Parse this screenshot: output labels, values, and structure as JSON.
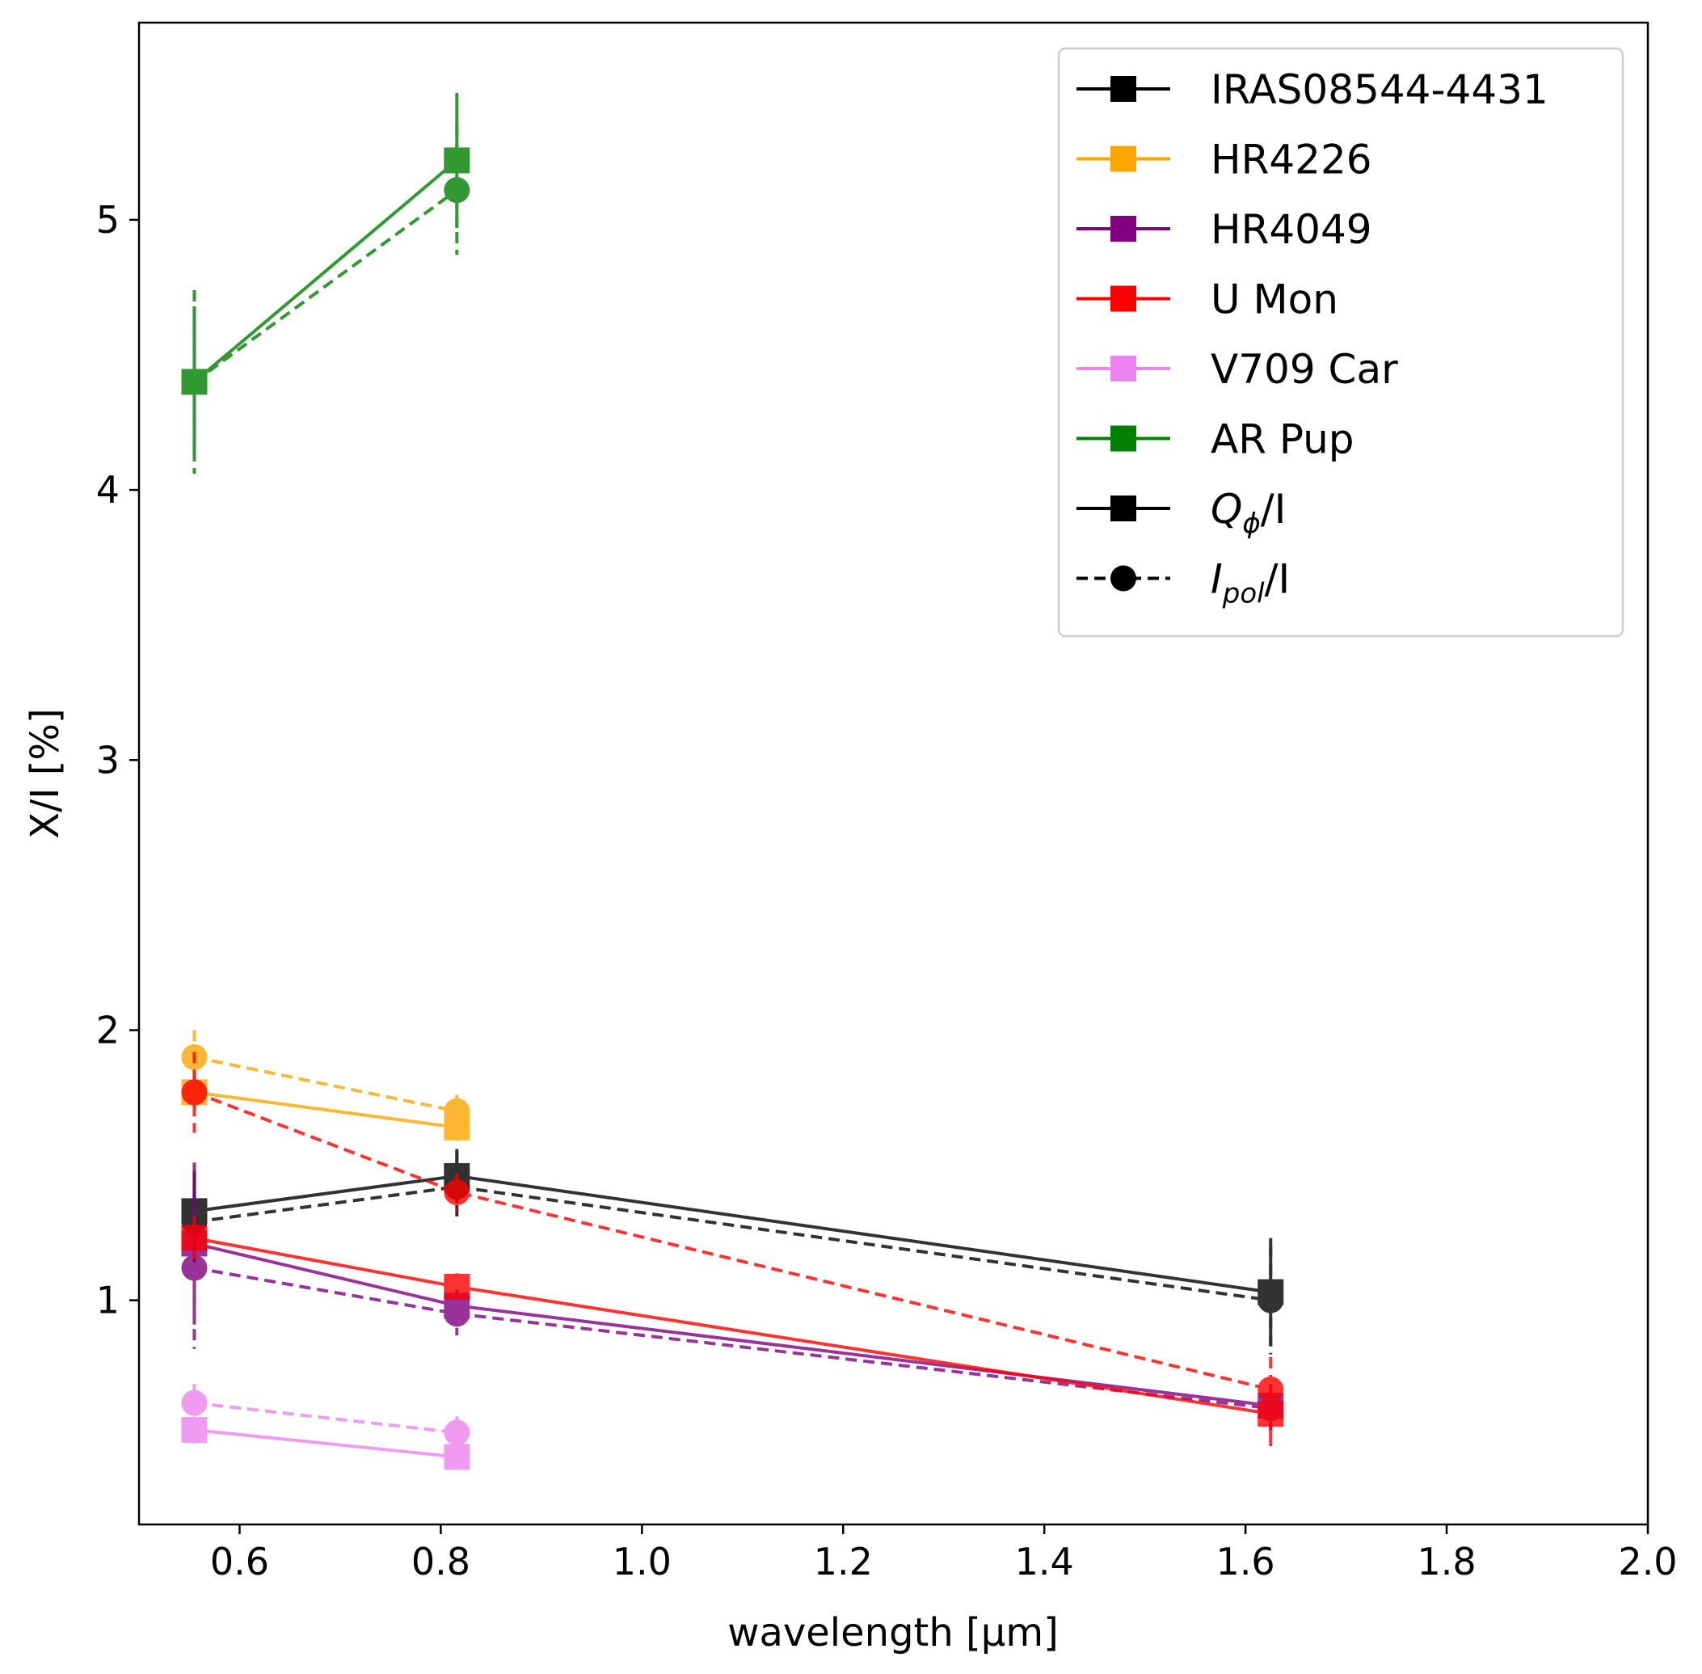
{
  "chart_data": {
    "type": "line",
    "title": "",
    "xlabel": "wavelength [μm]",
    "ylabel": "X/I [%]",
    "xlim": [
      0.5,
      2.0
    ],
    "ylim": [
      0.17,
      5.73
    ],
    "xticks": [
      "0.6",
      "0.8",
      "1.0",
      "1.2",
      "1.4",
      "1.6",
      "1.8",
      "2.0"
    ],
    "yticks": [
      "1",
      "2",
      "3",
      "4",
      "5"
    ],
    "grid": false,
    "legend_position": "top-right",
    "legend": {
      "objects": [
        "IRAS08544-4431",
        "HR4226",
        "HR4049",
        "U Mon",
        "V709 Car",
        "AR Pup"
      ],
      "styles": [
        {
          "name": "Qφ/I",
          "main": "Q",
          "sub": "ϕ",
          "suffix": "/I",
          "linestyle": "solid",
          "marker": "square"
        },
        {
          "name": "Ipol/I",
          "main": "I",
          "sub": "pol",
          "suffix": "/I",
          "linestyle": "dashed",
          "marker": "circle"
        }
      ]
    },
    "series": [
      {
        "name": "IRAS08544-4431",
        "color": "#000000",
        "q_phi": {
          "x": [
            0.555,
            0.816,
            1.625
          ],
          "y": [
            1.33,
            1.46,
            1.03
          ],
          "err": [
            0.15,
            0.1,
            0.2
          ]
        },
        "i_pol": {
          "x": [
            0.555,
            0.816,
            1.625
          ],
          "y": [
            1.29,
            1.42,
            1.0
          ],
          "err": [
            0.15,
            0.13,
            0.2
          ]
        }
      },
      {
        "name": "HR4226",
        "color": "#ffa500",
        "q_phi": {
          "x": [
            0.555,
            0.816
          ],
          "y": [
            1.77,
            1.64
          ],
          "err": [
            0.06,
            0.05
          ]
        },
        "i_pol": {
          "x": [
            0.555,
            0.816
          ],
          "y": [
            1.9,
            1.7
          ],
          "err": [
            0.1,
            0.06
          ]
        }
      },
      {
        "name": "HR4049",
        "color": "#800080",
        "q_phi": {
          "x": [
            0.555,
            0.816,
            1.625
          ],
          "y": [
            1.21,
            0.98,
            0.61
          ],
          "err": [
            0.3,
            0.06,
            0.08
          ]
        },
        "i_pol": {
          "x": [
            0.555,
            0.816,
            1.625
          ],
          "y": [
            1.12,
            0.95,
            0.6
          ],
          "err": [
            0.3,
            0.08,
            0.08
          ]
        }
      },
      {
        "name": "U Mon",
        "color": "#ff0000",
        "q_phi": {
          "x": [
            0.555,
            0.816,
            1.625
          ],
          "y": [
            1.23,
            1.05,
            0.58
          ],
          "err": [
            0.08,
            0.05,
            0.12
          ]
        },
        "i_pol": {
          "x": [
            0.555,
            0.816,
            1.625
          ],
          "y": [
            1.77,
            1.4,
            0.67
          ],
          "err": [
            0.15,
            0.07,
            0.12
          ]
        }
      },
      {
        "name": "V709 Car",
        "color": "#ee82ee",
        "q_phi": {
          "x": [
            0.555,
            0.816
          ],
          "y": [
            0.52,
            0.42
          ],
          "err": [
            0.05,
            0.04
          ]
        },
        "i_pol": {
          "x": [
            0.555,
            0.816
          ],
          "y": [
            0.62,
            0.51
          ],
          "err": [
            0.07,
            0.06
          ]
        }
      },
      {
        "name": "AR Pup",
        "color": "#008000",
        "q_phi": {
          "x": [
            0.555,
            0.816
          ],
          "y": [
            4.4,
            5.22
          ],
          "err": [
            0.28,
            0.25
          ]
        },
        "i_pol": {
          "x": [
            0.555,
            0.816
          ],
          "y": [
            4.4,
            5.11
          ],
          "err": [
            0.34,
            0.24
          ]
        }
      }
    ]
  }
}
